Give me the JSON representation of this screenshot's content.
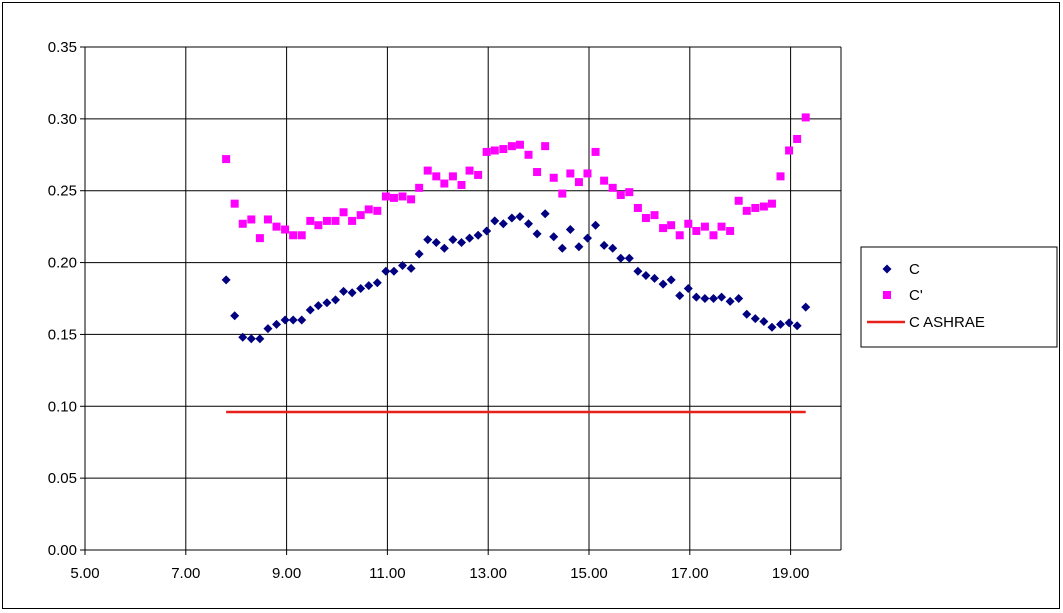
{
  "chart_data": {
    "type": "scatter",
    "xlim": [
      5.0,
      20.0
    ],
    "ylim": [
      0.0,
      0.35
    ],
    "x_ticks": [
      "5.00",
      "7.00",
      "9.00",
      "11.00",
      "13.00",
      "15.00",
      "17.00",
      "19.00"
    ],
    "y_ticks": [
      "0.00",
      "0.05",
      "0.10",
      "0.15",
      "0.20",
      "0.25",
      "0.30",
      "0.35"
    ],
    "x_tick_values": [
      5,
      7,
      9,
      11,
      13,
      15,
      17,
      19
    ],
    "y_tick_values": [
      0,
      0.05,
      0.1,
      0.15,
      0.2,
      0.25,
      0.3,
      0.35
    ],
    "x_grid": [
      5,
      7,
      9,
      11,
      13,
      15,
      17,
      19,
      20
    ],
    "y_grid": [
      0.05,
      0.1,
      0.15,
      0.2,
      0.25,
      0.3,
      0.35
    ],
    "legend_position": "right",
    "series": [
      {
        "name": "C",
        "marker": "diamond",
        "color": "#000080",
        "x": [
          7.8,
          7.97,
          8.13,
          8.3,
          8.47,
          8.63,
          8.8,
          8.97,
          9.13,
          9.3,
          9.47,
          9.63,
          9.8,
          9.97,
          10.13,
          10.3,
          10.47,
          10.63,
          10.8,
          10.97,
          11.13,
          11.3,
          11.47,
          11.63,
          11.8,
          11.97,
          12.13,
          12.3,
          12.47,
          12.63,
          12.8,
          12.97,
          13.13,
          13.3,
          13.47,
          13.63,
          13.8,
          13.97,
          14.13,
          14.3,
          14.47,
          14.63,
          14.8,
          14.97,
          15.13,
          15.3,
          15.47,
          15.63,
          15.8,
          15.97,
          16.13,
          16.3,
          16.47,
          16.63,
          16.8,
          16.97,
          17.13,
          17.3,
          17.47,
          17.63,
          17.8,
          17.97,
          18.13,
          18.3,
          18.47,
          18.63,
          18.8,
          18.97,
          19.13,
          19.3
        ],
        "y": [
          0.188,
          0.163,
          0.148,
          0.147,
          0.147,
          0.154,
          0.157,
          0.16,
          0.16,
          0.16,
          0.167,
          0.17,
          0.172,
          0.174,
          0.18,
          0.179,
          0.182,
          0.184,
          0.186,
          0.194,
          0.194,
          0.198,
          0.196,
          0.206,
          0.216,
          0.214,
          0.21,
          0.216,
          0.214,
          0.217,
          0.219,
          0.222,
          0.229,
          0.227,
          0.231,
          0.232,
          0.227,
          0.22,
          0.234,
          0.218,
          0.21,
          0.223,
          0.211,
          0.217,
          0.226,
          0.212,
          0.21,
          0.203,
          0.203,
          0.194,
          0.191,
          0.189,
          0.185,
          0.188,
          0.177,
          0.182,
          0.176,
          0.175,
          0.175,
          0.176,
          0.173,
          0.175,
          0.164,
          0.161,
          0.159,
          0.155,
          0.157,
          0.158,
          0.156,
          0.169
        ]
      },
      {
        "name": "C'",
        "marker": "square",
        "color": "#ff00ff",
        "x": [
          7.8,
          7.97,
          8.13,
          8.3,
          8.47,
          8.63,
          8.8,
          8.97,
          9.13,
          9.3,
          9.47,
          9.63,
          9.8,
          9.97,
          10.13,
          10.3,
          10.47,
          10.63,
          10.8,
          10.97,
          11.13,
          11.3,
          11.47,
          11.63,
          11.8,
          11.97,
          12.13,
          12.3,
          12.47,
          12.63,
          12.8,
          12.97,
          13.13,
          13.3,
          13.47,
          13.63,
          13.8,
          13.97,
          14.13,
          14.3,
          14.47,
          14.63,
          14.8,
          14.97,
          15.13,
          15.3,
          15.47,
          15.63,
          15.8,
          15.97,
          16.13,
          16.3,
          16.47,
          16.63,
          16.8,
          16.97,
          17.13,
          17.3,
          17.47,
          17.63,
          17.8,
          17.97,
          18.13,
          18.3,
          18.47,
          18.63,
          18.8,
          18.97,
          19.13,
          19.3
        ],
        "y": [
          0.272,
          0.241,
          0.227,
          0.23,
          0.217,
          0.23,
          0.225,
          0.223,
          0.219,
          0.219,
          0.229,
          0.226,
          0.229,
          0.229,
          0.235,
          0.229,
          0.233,
          0.237,
          0.236,
          0.246,
          0.245,
          0.246,
          0.244,
          0.252,
          0.264,
          0.26,
          0.255,
          0.26,
          0.254,
          0.264,
          0.261,
          0.277,
          0.278,
          0.279,
          0.281,
          0.282,
          0.275,
          0.263,
          0.281,
          0.259,
          0.248,
          0.262,
          0.256,
          0.262,
          0.277,
          0.257,
          0.252,
          0.247,
          0.249,
          0.238,
          0.231,
          0.233,
          0.224,
          0.226,
          0.219,
          0.227,
          0.222,
          0.225,
          0.219,
          0.225,
          0.222,
          0.243,
          0.236,
          0.238,
          0.239,
          0.241,
          0.26,
          0.278,
          0.286,
          0.301
        ]
      },
      {
        "name": "C ASHRAE",
        "marker": "line",
        "color": "#e8201c",
        "x": [
          7.8,
          19.3
        ],
        "y": [
          0.096,
          0.096
        ]
      }
    ]
  }
}
